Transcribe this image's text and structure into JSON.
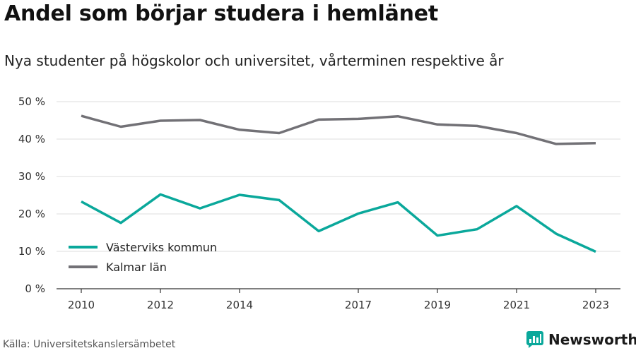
{
  "header": {
    "title": "Andel som börjar studera i hemlänet",
    "subtitle": "Nya studenter på högskolor och universitet, vårterminen respektive år"
  },
  "footer": {
    "source": "Källa: Universitetskanslersämbetet",
    "brand": "Newsworthy"
  },
  "colors": {
    "accent": "#0aa89b",
    "series_gray": "#727176",
    "grid": "#dddddd",
    "axis": "#333333"
  },
  "chart_data": {
    "type": "line",
    "title": "Andel som börjar studera i hemlänet",
    "subtitle": "Nya studenter på högskolor och universitet, vårterminen respektive år",
    "xlabel": "",
    "ylabel": "",
    "x": [
      2010,
      2011,
      2012,
      2013,
      2014,
      2015,
      2016,
      2017,
      2018,
      2019,
      2020,
      2021,
      2022,
      2023
    ],
    "x_ticks": [
      2010,
      2012,
      2014,
      2017,
      2019,
      2021,
      2023
    ],
    "x_tick_labels": [
      "2010",
      "2012",
      "2014",
      "2017",
      "2019",
      "2021",
      "2023"
    ],
    "ylim": [
      0,
      50
    ],
    "y_ticks": [
      0,
      10,
      20,
      30,
      40,
      50
    ],
    "y_tick_labels": [
      "0 %",
      "10 %",
      "20 %",
      "30 %",
      "40 %",
      "50 %"
    ],
    "grid": true,
    "legend_position": "bottom-left",
    "series": [
      {
        "name": "Västerviks kommun",
        "color": "#0aa89b",
        "values": [
          23.3,
          17.6,
          25.2,
          21.5,
          25.1,
          23.7,
          15.4,
          20.1,
          23.1,
          14.2,
          15.9,
          22.1,
          14.7,
          9.9
        ]
      },
      {
        "name": "Kalmar län",
        "color": "#727176",
        "values": [
          46.2,
          43.3,
          44.9,
          45.1,
          42.5,
          41.6,
          45.2,
          45.4,
          46.1,
          43.9,
          43.5,
          41.6,
          38.7,
          38.9
        ]
      }
    ]
  }
}
